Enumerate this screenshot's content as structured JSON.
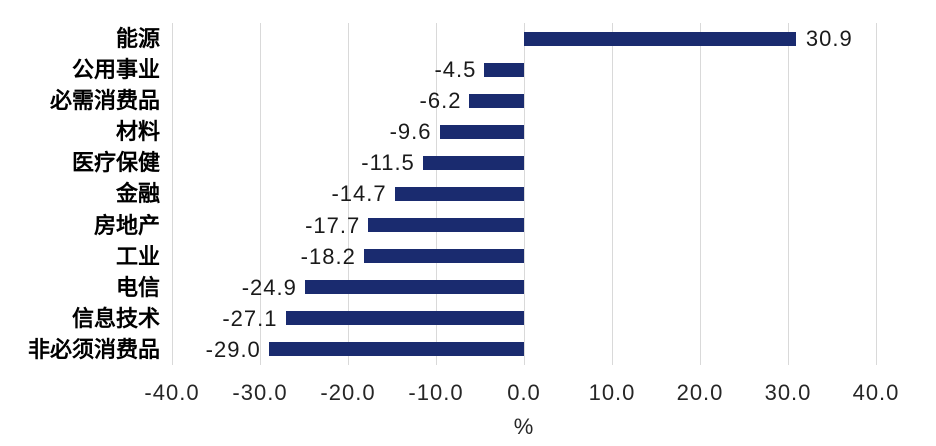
{
  "chart_data": {
    "type": "bar",
    "orientation": "horizontal",
    "categories": [
      "能源",
      "公用事业",
      "必需消费品",
      "材料",
      "医疗保健",
      "金融",
      "房地产",
      "工业",
      "电信",
      "信息技术",
      "非必须消费品"
    ],
    "values": [
      30.9,
      -4.5,
      -6.2,
      -9.6,
      -11.5,
      -14.7,
      -17.7,
      -18.2,
      -24.9,
      -27.1,
      -29.0
    ],
    "value_labels": [
      "30.9",
      "-4.5",
      "-6.2",
      "-9.6",
      "-11.5",
      "-14.7",
      "-17.7",
      "-18.2",
      "-24.9",
      "-27.1",
      "-29.0"
    ],
    "xlabel": "%",
    "xlim": [
      -40,
      40
    ],
    "xticks": [
      -40,
      -30,
      -20,
      -10,
      0,
      10,
      20,
      30,
      40
    ],
    "xtick_labels": [
      "-40.0",
      "-30.0",
      "-20.0",
      "-10.0",
      "0.0",
      "10.0",
      "20.0",
      "30.0",
      "40.0"
    ],
    "grid": true,
    "legend": "none",
    "bar_color": "#1A2B6F",
    "gridline_color": "#D9D9D9",
    "category_label_color": "#000000",
    "value_label_color": "#1A1A1A",
    "tick_label_color": "#262626"
  }
}
